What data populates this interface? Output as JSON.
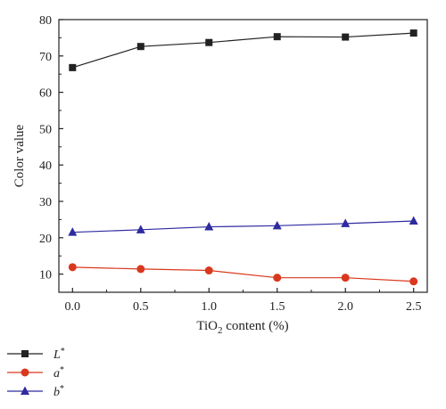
{
  "chart_data": {
    "type": "line",
    "xlabel": "TiO₂ content (%)",
    "ylabel": "Color value",
    "xlim": [
      -0.1,
      2.6
    ],
    "ylim": [
      5,
      80
    ],
    "x_ticks": [
      "0.0",
      "0.5",
      "1.0",
      "1.5",
      "2.0",
      "2.5"
    ],
    "y_ticks": [
      "10",
      "20",
      "30",
      "40",
      "50",
      "60",
      "70",
      "80"
    ],
    "grid": false,
    "legend_position": "below-left",
    "x": [
      0.0,
      0.5,
      1.0,
      1.5,
      2.0,
      2.5
    ],
    "series": [
      {
        "name": "L*",
        "values": [
          66.8,
          72.6,
          73.7,
          75.3,
          75.2,
          76.3
        ],
        "color": "#222222",
        "marker": "square"
      },
      {
        "name": "a*",
        "values": [
          11.9,
          11.4,
          11.0,
          9.0,
          9.0,
          8.0
        ],
        "color": "#d9381e",
        "marker": "circle"
      },
      {
        "name": "b*",
        "values": [
          21.5,
          22.2,
          23.0,
          23.3,
          23.9,
          24.6
        ],
        "color": "#2f2aa0",
        "marker": "triangle"
      }
    ]
  }
}
